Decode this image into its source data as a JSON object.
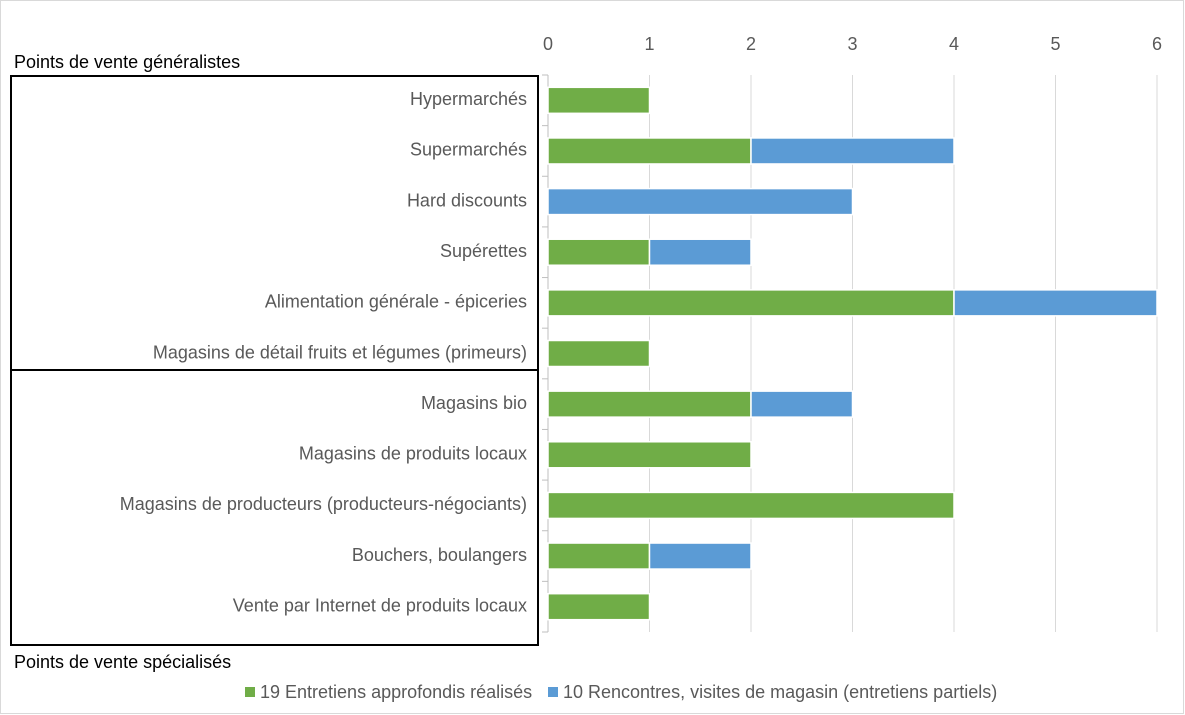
{
  "chart_data": {
    "type": "stacked_barh",
    "categories": [
      "Hypermarchés",
      "Supermarchés",
      "Hard discounts",
      "Supérettes",
      "Alimentation générale - épiceries",
      "Magasins de détail fruits et légumes (primeurs)",
      "Magasins bio",
      "Magasins de produits locaux",
      "Magasins de producteurs (producteurs-négociants)",
      "Bouchers, boulangers",
      "Vente par Internet de produits locaux"
    ],
    "series": [
      {
        "name": "19 Entretiens approfondis réalisés",
        "color": "#70ad47",
        "values": [
          1,
          2,
          0,
          1,
          4,
          1,
          2,
          2,
          4,
          1,
          1
        ]
      },
      {
        "name": "10 Rencontres, visites de magasin (entretiens partiels)",
        "color": "#5b9bd5",
        "values": [
          0,
          2,
          3,
          1,
          2,
          0,
          1,
          0,
          0,
          1,
          0
        ]
      }
    ],
    "xlim": [
      0,
      6
    ],
    "xticks": [
      0,
      1,
      2,
      3,
      4,
      5,
      6
    ],
    "grid": true,
    "legend": "bottom",
    "annotations": [
      "Points de vente généralistes",
      "Points de vente spécialisés"
    ]
  }
}
